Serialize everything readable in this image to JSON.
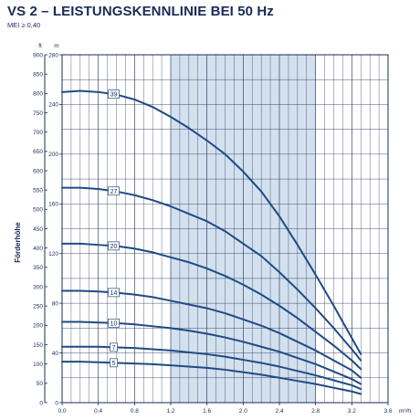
{
  "title": "VS 2 – LEISTUNGSKENNLINIE BEI 50 Hz",
  "subtitle": "MEI ≥ 0,40",
  "chart_data": {
    "type": "line",
    "ylabel": "Förderhöhe",
    "y_unit_m": "m",
    "y_unit_ft": "ft",
    "x_unit": "m³/h",
    "xlim": [
      0,
      3.6
    ],
    "ylim_m": [
      0,
      280
    ],
    "ylim_ft": [
      0,
      900
    ],
    "x_ticks": [
      "0.0",
      "0.4",
      "0.8",
      "1.2",
      "1.6",
      "2.0",
      "2.4",
      "2.8",
      "3.2",
      "3.6"
    ],
    "y_ticks_m": [
      "0",
      "40",
      "80",
      "120",
      "160",
      "200",
      "240",
      "280"
    ],
    "y_ticks_ft": [
      "0",
      "50",
      "100",
      "150",
      "200",
      "250",
      "300",
      "350",
      "400",
      "450",
      "500",
      "550",
      "600",
      "650",
      "700",
      "750",
      "800",
      "850",
      "900"
    ],
    "recommended_range": [
      1.2,
      2.8
    ],
    "grid": true,
    "line_color": "#1e4b85",
    "band_color": "#d3e0ee",
    "series": [
      {
        "name": "39",
        "label_x": 0.57,
        "x": [
          0,
          0.2,
          0.4,
          0.6,
          0.8,
          1.0,
          1.2,
          1.4,
          1.6,
          1.8,
          2.0,
          2.2,
          2.4,
          2.6,
          2.8,
          3.0,
          3.2,
          3.3
        ],
        "y": [
          250,
          251,
          250,
          248,
          244,
          238,
          230,
          221,
          211,
          200,
          186,
          170,
          150,
          127,
          103,
          78,
          52,
          39
        ]
      },
      {
        "name": "27",
        "label_x": 0.57,
        "x": [
          0,
          0.2,
          0.4,
          0.6,
          0.8,
          1.0,
          1.2,
          1.4,
          1.6,
          1.8,
          2.0,
          2.2,
          2.4,
          2.6,
          2.8,
          3.0,
          3.2,
          3.3
        ],
        "y": [
          173,
          173,
          172,
          170,
          167,
          163,
          158,
          152,
          146,
          138,
          128,
          118,
          105,
          91,
          76,
          60,
          43,
          34
        ]
      },
      {
        "name": "20",
        "label_x": 0.57,
        "x": [
          0,
          0.2,
          0.4,
          0.6,
          0.8,
          1.0,
          1.2,
          1.4,
          1.6,
          1.8,
          2.0,
          2.2,
          2.4,
          2.6,
          2.8,
          3.0,
          3.2,
          3.3
        ],
        "y": [
          128,
          128,
          127,
          126,
          124,
          121,
          117,
          113,
          108,
          102,
          95,
          87,
          78,
          68,
          57,
          46,
          34,
          27
        ]
      },
      {
        "name": "14",
        "label_x": 0.57,
        "x": [
          0,
          0.2,
          0.4,
          0.6,
          0.8,
          1.0,
          1.2,
          1.4,
          1.6,
          1.8,
          2.0,
          2.2,
          2.4,
          2.6,
          2.8,
          3.0,
          3.2,
          3.3
        ],
        "y": [
          90,
          90,
          89.5,
          88.5,
          87,
          85,
          82,
          79,
          76,
          72,
          67,
          62,
          56,
          49,
          42,
          34,
          26,
          20
        ]
      },
      {
        "name": "10",
        "label_x": 0.57,
        "x": [
          0,
          0.2,
          0.4,
          0.6,
          0.8,
          1.0,
          1.2,
          1.4,
          1.6,
          1.8,
          2.0,
          2.2,
          2.4,
          2.6,
          2.8,
          3.0,
          3.2,
          3.3
        ],
        "y": [
          65,
          65,
          64.5,
          64,
          63,
          61.5,
          60,
          58,
          55.5,
          52.5,
          49,
          45,
          41,
          36,
          31,
          25,
          19,
          15
        ]
      },
      {
        "name": "7",
        "label_x": 0.57,
        "x": [
          0,
          0.2,
          0.4,
          0.6,
          0.8,
          1.0,
          1.2,
          1.4,
          1.6,
          1.8,
          2.0,
          2.2,
          2.4,
          2.6,
          2.8,
          3.0,
          3.2,
          3.3
        ],
        "y": [
          45,
          45,
          45,
          44.5,
          44,
          43,
          42,
          40.5,
          39,
          37,
          34.5,
          32,
          29,
          25.5,
          22,
          18,
          14,
          11
        ]
      },
      {
        "name": "5",
        "label_x": 0.57,
        "x": [
          0,
          0.2,
          0.4,
          0.6,
          0.8,
          1.0,
          1.2,
          1.4,
          1.6,
          1.8,
          2.0,
          2.2,
          2.4,
          2.6,
          2.8,
          3.0,
          3.2,
          3.3
        ],
        "y": [
          33,
          33,
          32.5,
          32,
          31.5,
          31,
          30,
          29,
          28,
          26.5,
          24.5,
          22.5,
          20,
          17.5,
          15,
          12,
          9,
          7
        ]
      }
    ]
  }
}
